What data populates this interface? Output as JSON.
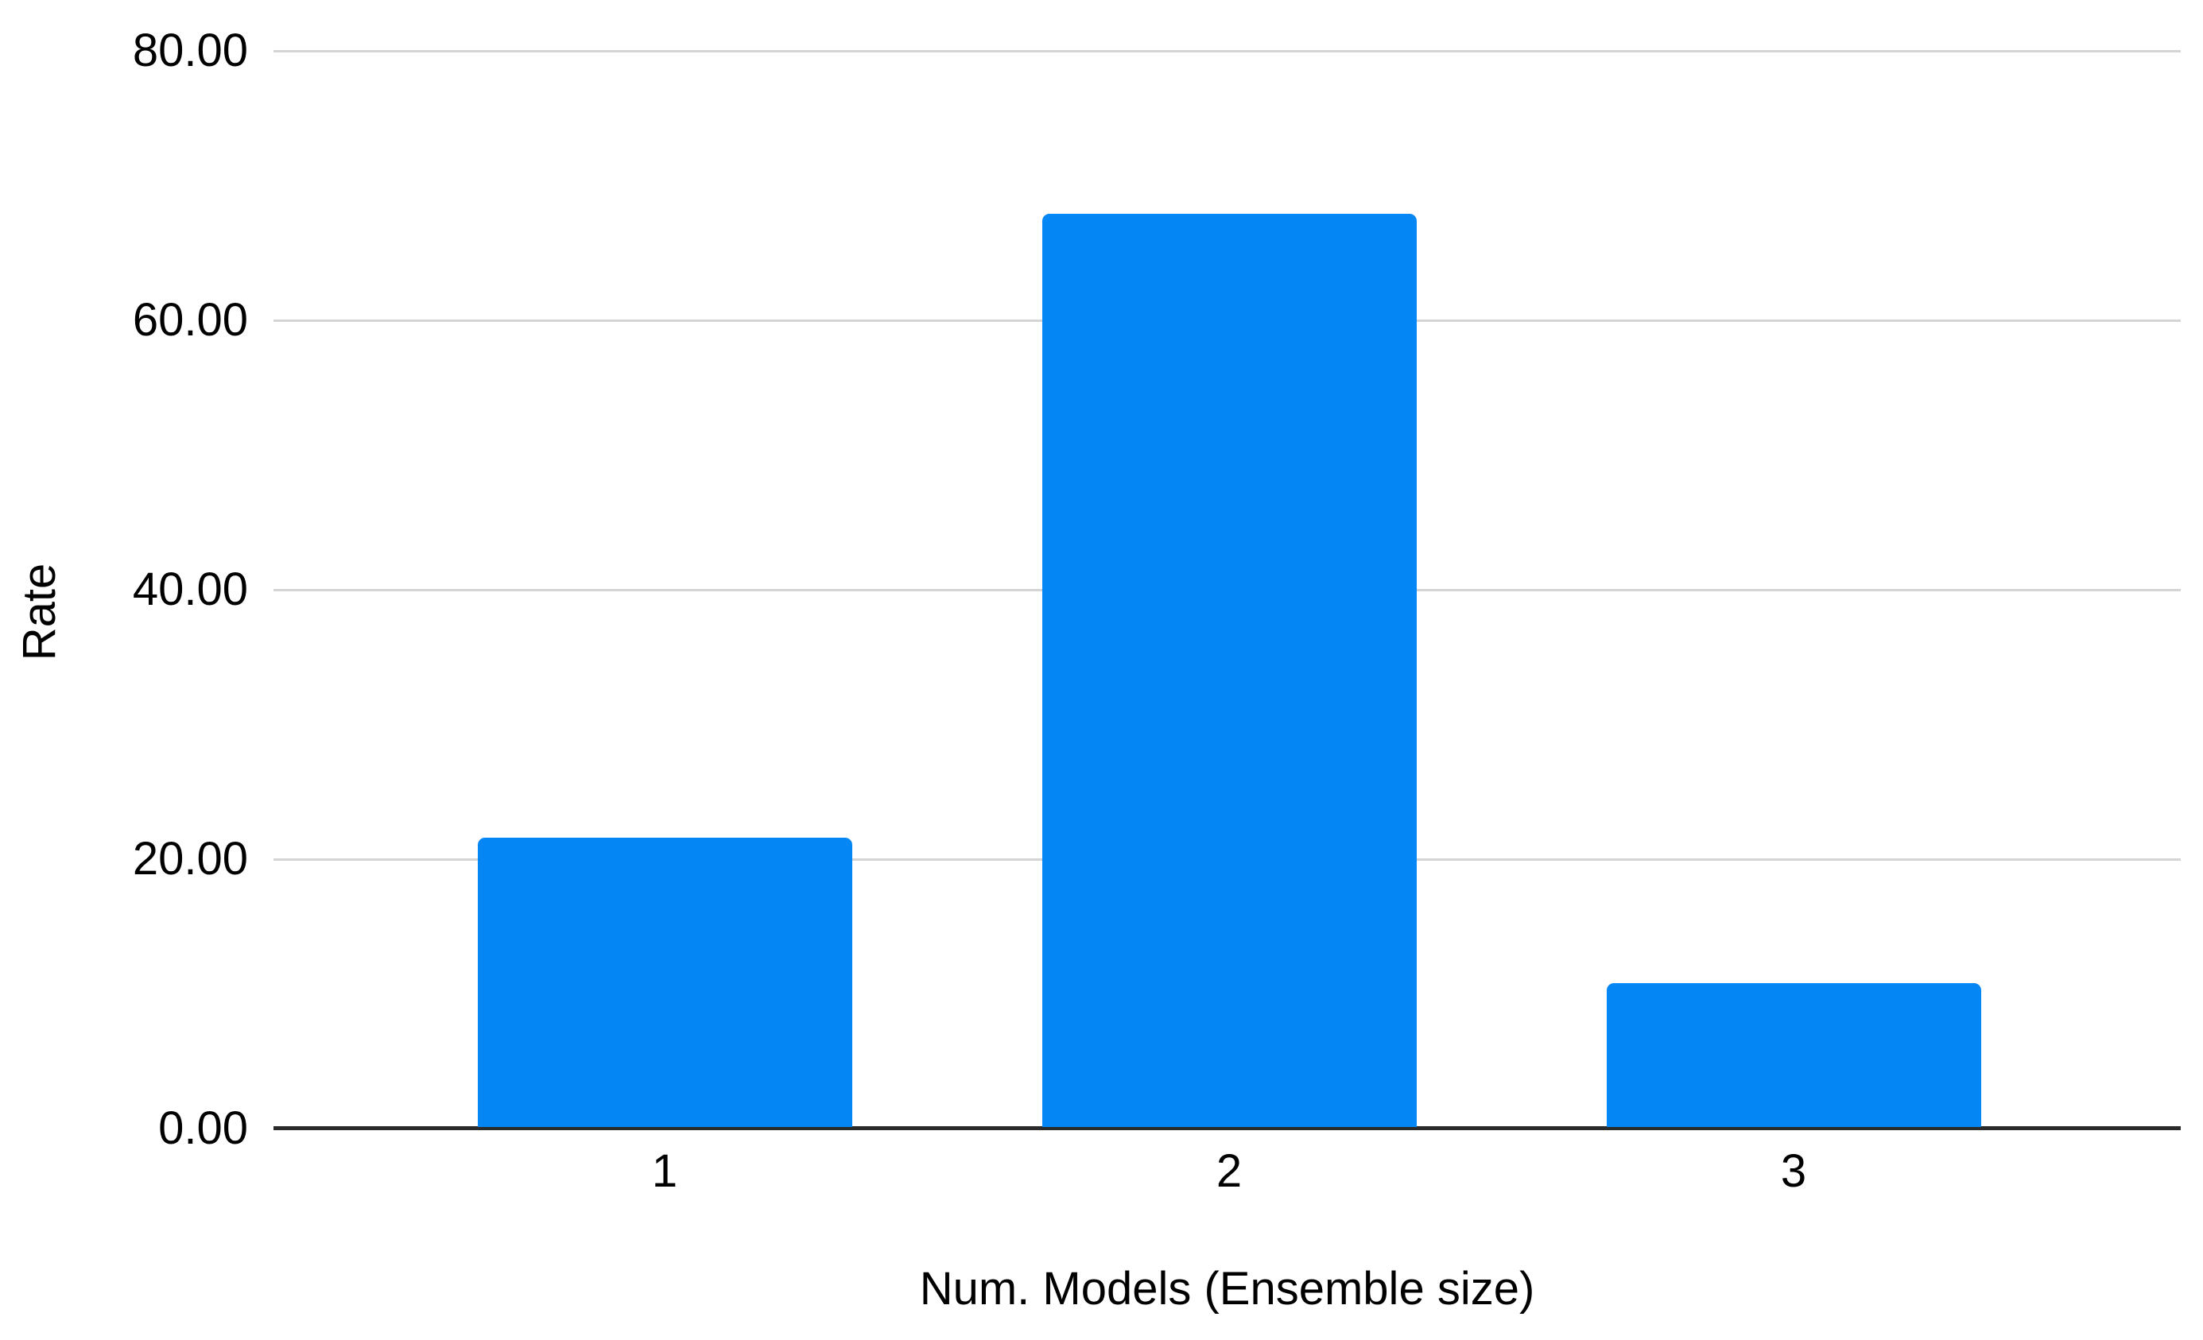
{
  "chart_data": {
    "type": "bar",
    "categories": [
      "1",
      "2",
      "3"
    ],
    "values": [
      21.5,
      67.8,
      10.7
    ],
    "title": "",
    "xlabel": "Num. Models (Ensemble size)",
    "ylabel": "Rate",
    "ylim": [
      0,
      80
    ],
    "y_ticks": [
      0,
      20,
      40,
      60,
      80
    ],
    "y_tick_labels": [
      "0.00",
      "20.00",
      "40.00",
      "60.00",
      "80.00"
    ],
    "grid": true,
    "legend": "none",
    "colors": {
      "bar": "#0586f5",
      "gridline": "#d4d4d4",
      "axis_line": "#2b2b2b",
      "text": "#000000",
      "background": "#ffffff"
    }
  }
}
